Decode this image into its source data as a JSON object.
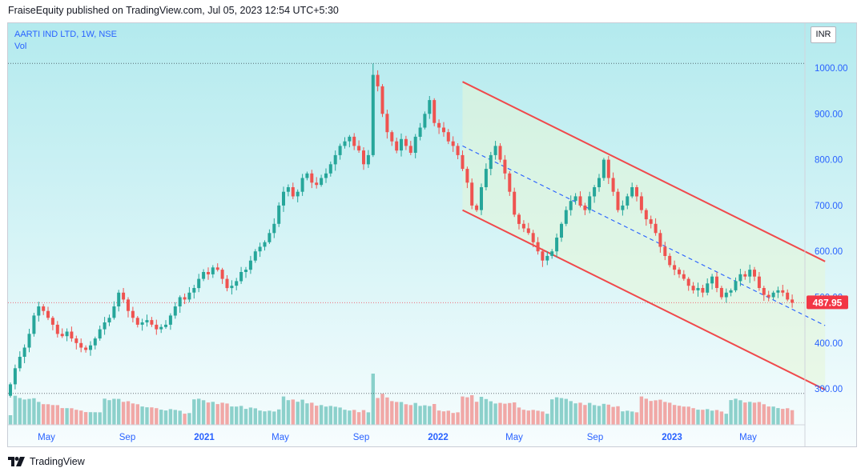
{
  "header": {
    "published": "FraiseEquity published on TradingView.com, Jul 05, 2023 12:54 UTC+5:30"
  },
  "legend": {
    "symbol": "AARTI IND LTD, 1W, NSE",
    "volume": "Vol"
  },
  "currency": "INR",
  "footer": {
    "brand": "TradingView"
  },
  "colors": {
    "up": "#26a69a",
    "down": "#ef5350",
    "channel": "#f0494b",
    "midline": "#2962ff",
    "price_label": "#f23645"
  },
  "chart_data": {
    "type": "candlestick",
    "title": "AARTI IND LTD, 1W, NSE",
    "ylim": [
      270,
      1070
    ],
    "y_ticks": [
      "1000.00",
      "900.00",
      "800.00",
      "700.00",
      "600.00",
      "500.00",
      "400.00",
      "300.00"
    ],
    "x_ticks": [
      "May",
      "Sep",
      "2021",
      "May",
      "Sep",
      "2022",
      "May",
      "Sep",
      "2023",
      "May"
    ],
    "last_price": "487.95",
    "reference_lines": {
      "high": 1010,
      "last": 488,
      "low": 290
    },
    "trend_channel": {
      "upper": [
        [
          "2022-01-03",
          970
        ],
        [
          "2023-06-26",
          578
        ]
      ],
      "lower": [
        [
          "2022-01-03",
          690
        ],
        [
          "2023-06-26",
          298
        ]
      ],
      "middle": [
        [
          "2022-01-03",
          830
        ],
        [
          "2023-06-26",
          438
        ]
      ]
    },
    "x_start": "2020-03-02",
    "series": [
      {
        "name": "price",
        "close": [
          310,
          345,
          370,
          390,
          420,
          460,
          480,
          470,
          455,
          440,
          420,
          415,
          425,
          410,
          400,
          390,
          385,
          395,
          410,
          430,
          445,
          455,
          480,
          510,
          495,
          470,
          455,
          440,
          445,
          450,
          440,
          430,
          435,
          440,
          460,
          480,
          500,
          495,
          510,
          520,
          540,
          555,
          550,
          565,
          560,
          540,
          520,
          525,
          535,
          555,
          560,
          580,
          600,
          610,
          620,
          640,
          660,
          700,
          730,
          740,
          720,
          730,
          760,
          770,
          750,
          745,
          760,
          770,
          790,
          810,
          830,
          840,
          850,
          830,
          820,
          790,
          810,
          985,
          960,
          900,
          860,
          840,
          820,
          845,
          830,
          815,
          850,
          870,
          900,
          930,
          880,
          870,
          860,
          840,
          830,
          810,
          780,
          750,
          700,
          690,
          740,
          780,
          810,
          830,
          800,
          770,
          730,
          680,
          660,
          650,
          640,
          620,
          600,
          580,
          590,
          600,
          630,
          660,
          690,
          710,
          720,
          700,
          690,
          720,
          740,
          760,
          800,
          760,
          730,
          690,
          700,
          720,
          740,
          720,
          690,
          670,
          660,
          640,
          610,
          590,
          570,
          560,
          550,
          540,
          525,
          515,
          520,
          510,
          530,
          545,
          520,
          500,
          510,
          515,
          535,
          550,
          545,
          560,
          545,
          520,
          505,
          500,
          510,
          515,
          510,
          495,
          488
        ]
      }
    ]
  }
}
